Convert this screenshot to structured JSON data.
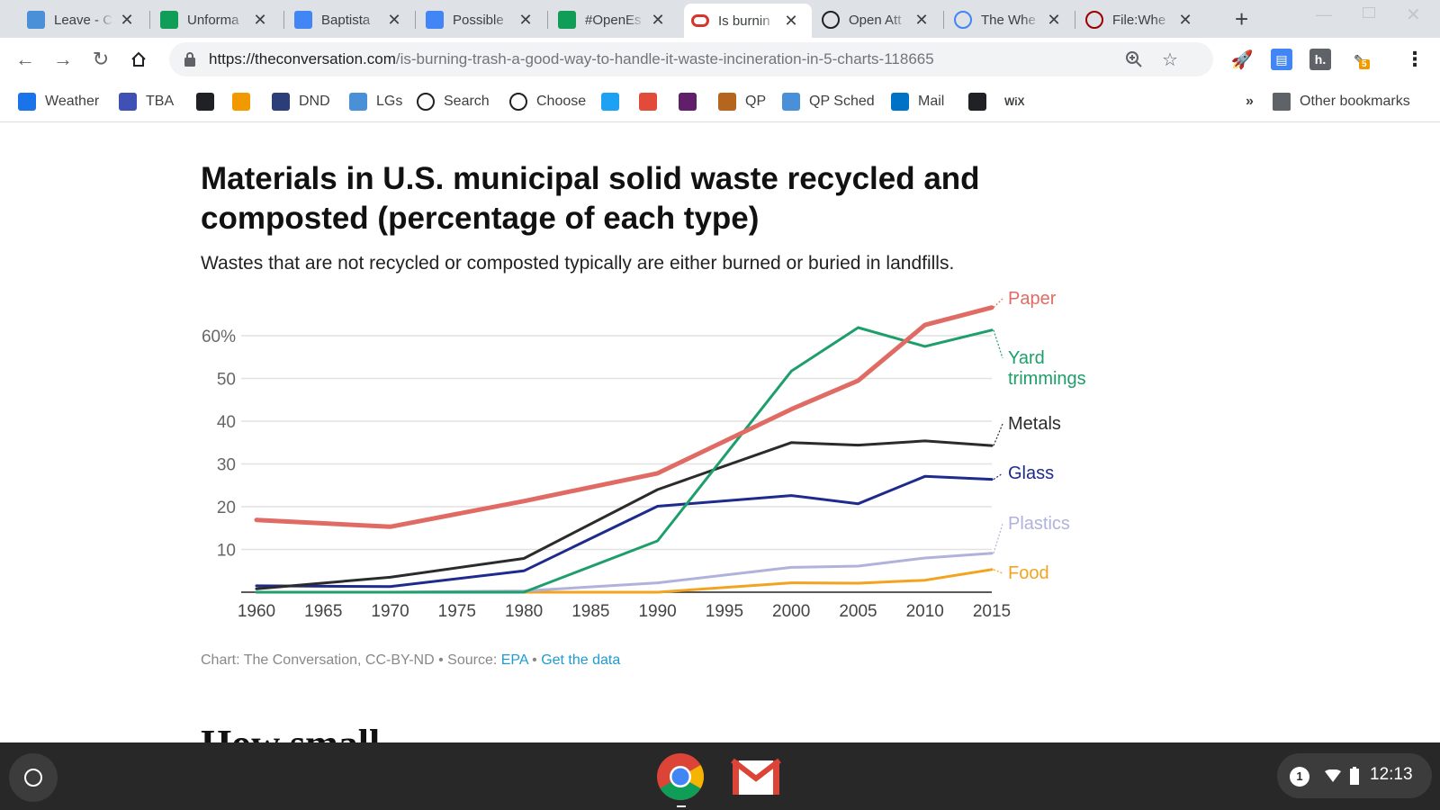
{
  "browser": {
    "tabs": [
      {
        "title": "Leave - C",
        "icon": "person-icon",
        "color": "#4a90d9"
      },
      {
        "title": "Unforma",
        "icon": "drive-icon",
        "color": "#0f9d58"
      },
      {
        "title": "Baptista",
        "icon": "docs-icon",
        "color": "#4285f4"
      },
      {
        "title": "Possible",
        "icon": "docs-icon",
        "color": "#4285f4"
      },
      {
        "title": "#OpenEs",
        "icon": "sheets-icon",
        "color": "#0f9d58"
      },
      {
        "title": "Is burnin",
        "icon": "conversation-icon",
        "color": "#d8352a"
      },
      {
        "title": "Open Att",
        "icon": "globe-icon",
        "color": "#202124"
      },
      {
        "title": "The Whe",
        "icon": "google-icon",
        "color": "#4285f4"
      },
      {
        "title": "File:Whe",
        "icon": "wikimedia-icon",
        "color": "#990000"
      }
    ],
    "url": {
      "host": "https://theconversation.com",
      "path": "/is-burning-trash-a-good-way-to-handle-it-waste-incineration-in-5-charts-118665"
    },
    "bookmarks": [
      {
        "label": "Weather",
        "icon": "weather-icon"
      },
      {
        "label": "TBA",
        "icon": "tba-icon"
      },
      {
        "label": "",
        "icon": "nyt-icon"
      },
      {
        "label": "",
        "icon": "amazon-icon"
      },
      {
        "label": "DND",
        "icon": "dnd-icon"
      },
      {
        "label": "LGs",
        "icon": "cloud-icon"
      },
      {
        "label": "Search",
        "icon": "cc-icon"
      },
      {
        "label": "Choose",
        "icon": "cc-icon"
      },
      {
        "label": "",
        "icon": "twitter-icon"
      },
      {
        "label": "",
        "icon": "nbc-icon"
      },
      {
        "label": "",
        "icon": "slack-icon"
      },
      {
        "label": "QP",
        "icon": "qp-icon"
      },
      {
        "label": "QP Sched",
        "icon": "person-icon"
      },
      {
        "label": "Mail",
        "icon": "outlook-icon"
      },
      {
        "label": "",
        "icon": "m-icon"
      },
      {
        "label": "WiX",
        "icon": ""
      }
    ],
    "overflow": "»",
    "other_bookmarks": "Other bookmarks",
    "extension_badge": "5"
  },
  "article": {
    "title": "Materials in U.S. municipal solid waste recycled and composted (percentage of each type)",
    "subtitle": "Wastes that are not recycled or composted typically are either burned or buried in landfills.",
    "credit_prefix": "Chart: The Conversation, CC-BY-ND • Source: ",
    "credit_source": "EPA",
    "credit_sep": " • ",
    "credit_data": "Get the data"
  },
  "chart_data": {
    "type": "line",
    "title": "Materials in U.S. municipal solid waste recycled and composted (percentage of each type)",
    "x": [
      1960,
      1970,
      1980,
      1990,
      2000,
      2005,
      2010,
      2015
    ],
    "x_ticks": [
      "1960",
      "1965",
      "1970",
      "1975",
      "1980",
      "1985",
      "1990",
      "1995",
      "2000",
      "2005",
      "2010",
      "2015"
    ],
    "y_ticks": [
      "10",
      "20",
      "30",
      "40",
      "50",
      "60%"
    ],
    "ylim": [
      0,
      65
    ],
    "grid": true,
    "series": [
      {
        "name": "Paper",
        "color": "#e06b64",
        "values": [
          16.9,
          15.3,
          21.3,
          27.8,
          42.8,
          49.5,
          62.5,
          66.6
        ]
      },
      {
        "name": "Yard trimmings",
        "color": "#1e9e6a",
        "values": [
          0,
          0,
          0,
          12,
          51.7,
          61.9,
          57.5,
          61.3
        ]
      },
      {
        "name": "Metals",
        "color": "#2b2b2b",
        "values": [
          0.8,
          3.5,
          7.9,
          24,
          35,
          34.4,
          35.4,
          34.3
        ]
      },
      {
        "name": "Glass",
        "color": "#1e2b8c",
        "values": [
          1.5,
          1.3,
          5,
          20.1,
          22.6,
          20.7,
          27.1,
          26.4
        ]
      },
      {
        "name": "Plastics",
        "color": "#b0b2dc",
        "values": [
          0,
          0,
          0.3,
          2.2,
          5.8,
          6.1,
          8,
          9.1
        ]
      },
      {
        "name": "Food",
        "color": "#f2a31f",
        "values": [
          0,
          0,
          0,
          0,
          2.2,
          2.1,
          2.8,
          5.3
        ]
      }
    ]
  },
  "shelf": {
    "notification_count": "1",
    "time": "12:13"
  },
  "next_heading": "How small…"
}
